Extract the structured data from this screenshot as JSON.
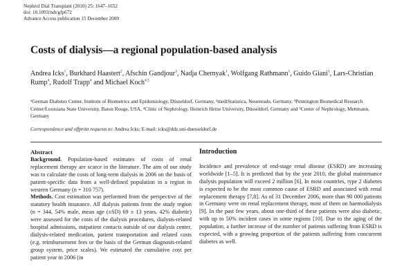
{
  "header": {
    "journal_line": "Nephrol Dial Transplant (2010) 25: 1647–1652",
    "doi": "doi: 10.1093/ndt/gfp672",
    "pub_note": "Advance Access publication 15 December 2009"
  },
  "title": "Costs of dialysis—a regional population-based analysis",
  "authors": [
    {
      "name": "Andrea Icks",
      "sup": "1"
    },
    {
      "name": "Burkhard Haastert",
      "sup": "2"
    },
    {
      "name": "Afschin Gandjour",
      "sup": "3"
    },
    {
      "name": "Nadja Chernyak",
      "sup": "1"
    },
    {
      "name": "Wolfgang Rathmann",
      "sup": "1"
    },
    {
      "name": "Guido Giani",
      "sup": "1"
    },
    {
      "name": "Lars-Christian Rump",
      "sup": "4"
    },
    {
      "name": "Rudolf Trapp",
      "sup": "4"
    },
    {
      "name": "Michael Koch",
      "sup": "4,5"
    }
  ],
  "affiliations": "¹German Diabetes Center, Institute of Biometrics and Epidemiology, Düsseldorf, Germany, ²mediStatistica, Neuenrade, Germany, ³Pennington Biomedical Research Center/Louisiana State University, Baton Rouge, USA, ⁴Clinic of Nephrology, Heinrich Heine University, Düsseldorf, Germany and ⁵Center of Nephrology, Mettmann, Germany",
  "correspondence": {
    "label": "Correspondence and offprint requests to",
    "text": ": Andrea Icks; E-mail: icks@ddz.uni-duesseldorf.de"
  },
  "abstract": {
    "heading": "Abstract",
    "background_label": "Background.",
    "background_text": " Population-based estimates of costs of renal replacement therapy are scarce in the literature. The aim of our study was to calculate the costs of long-term dialysis in 2006 on the basis of patient-specific data from a well-defined population in a region in western Germany (n = 310 757).",
    "methods_label": "Methods.",
    "methods_text": " Cost estimation was performed from the perspective of the statutory health insurance. All dialysis patients from the study region (n = 344, 54% male, mean age (±SD) 69 ± 13 years, 42% diabetic) were assessed for the costs of the dialysis procedures, dialysis-related hospital admissions, outpatient contacts outside of our dialysis center, dialysis-related medication, patient transportation and related costs (e.g. reimbursement fees or the basis of the German diagnosis-related group system, price scales). We estimated the cumulative cost per patient year in 2006 (in"
  },
  "introduction": {
    "heading": "Introduction",
    "text": "Incidence and prevalence of end-stage renal disease (ESRD) are increasing worldwide [1–5]. It is predicted that by the year 2010, the global maintenance dialysis population will exceed 2 million [6]. In most countries, type 2 diabetes is expected to be the most common cause of ESRD and associated with renal replacement therapy [7,8]. As of 31 December 2006, more than 90 000 patients in Germany were on renal replacement therapy, most of them on haemodialysis [9]. In the past few years, about one-third of these patients were also diabetic, with up to 50% incident cases in some regions [10]. Due to the aging of the population, a further increase of the number of patients suffering from ESRD is expected, with a growing proportion of the patients suffering from concurrent diabetes as well."
  }
}
